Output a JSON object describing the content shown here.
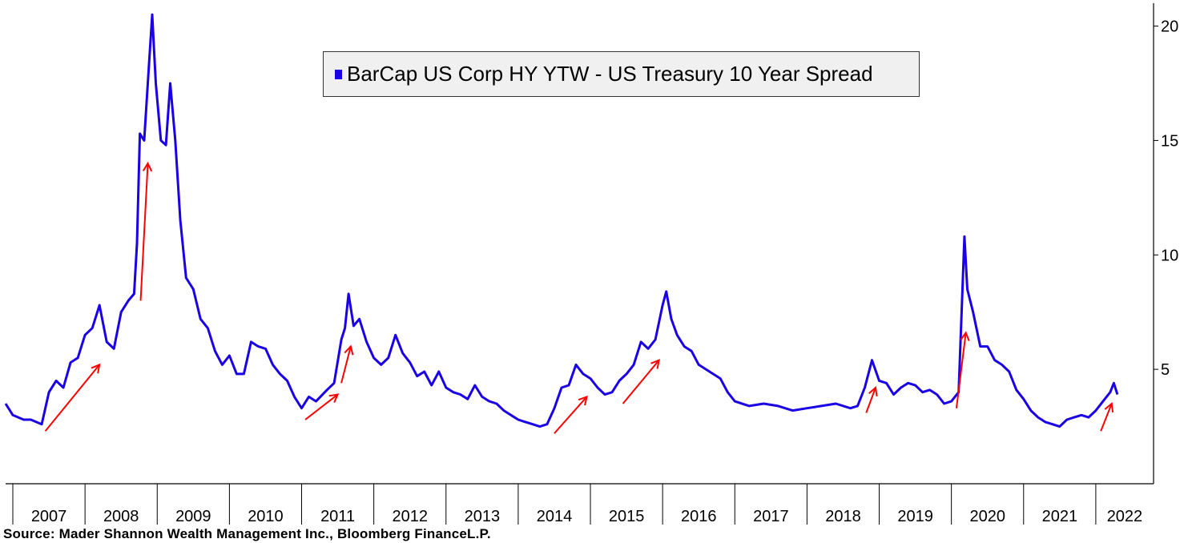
{
  "chart_data": {
    "type": "line",
    "title": "",
    "xlabel": "",
    "ylabel": "",
    "legend": {
      "position": "top-center",
      "label": "BarCap US Corp HY YTW -  US Treasury 10 Year Spread"
    },
    "source": "Source: Mader Shannon Wealth Management Inc., Bloomberg FinanceL.P.",
    "y_axis": {
      "side": "right",
      "ticks": [
        "5",
        "10",
        "15",
        "20"
      ],
      "ylim": [
        0,
        21
      ]
    },
    "x_axis": {
      "categories": [
        "2007",
        "2008",
        "2009",
        "2010",
        "2011",
        "2012",
        "2013",
        "2014",
        "2015",
        "2016",
        "2017",
        "2018",
        "2019",
        "2020",
        "2021",
        "2022"
      ],
      "xlim": [
        2006.9,
        2022.8
      ]
    },
    "grid": false,
    "series": [
      {
        "name": "BarCap US Corp HY YTW -  US Treasury 10 Year Spread",
        "color": "#1a00e6",
        "points": [
          [
            2006.9,
            3.5
          ],
          [
            2007.0,
            3.0
          ],
          [
            2007.15,
            2.8
          ],
          [
            2007.25,
            2.8
          ],
          [
            2007.4,
            2.6
          ],
          [
            2007.5,
            4.0
          ],
          [
            2007.6,
            4.5
          ],
          [
            2007.7,
            4.2
          ],
          [
            2007.8,
            5.3
          ],
          [
            2007.9,
            5.5
          ],
          [
            2008.0,
            6.5
          ],
          [
            2008.1,
            6.8
          ],
          [
            2008.2,
            7.8
          ],
          [
            2008.3,
            6.2
          ],
          [
            2008.4,
            5.9
          ],
          [
            2008.5,
            7.5
          ],
          [
            2008.6,
            8.0
          ],
          [
            2008.68,
            8.3
          ],
          [
            2008.72,
            10.5
          ],
          [
            2008.76,
            15.3
          ],
          [
            2008.82,
            15.0
          ],
          [
            2008.88,
            18.0
          ],
          [
            2008.93,
            20.5
          ],
          [
            2008.98,
            17.5
          ],
          [
            2009.05,
            15.0
          ],
          [
            2009.12,
            14.8
          ],
          [
            2009.18,
            17.5
          ],
          [
            2009.25,
            15.0
          ],
          [
            2009.32,
            11.5
          ],
          [
            2009.4,
            9.0
          ],
          [
            2009.5,
            8.5
          ],
          [
            2009.6,
            7.2
          ],
          [
            2009.7,
            6.8
          ],
          [
            2009.8,
            5.8
          ],
          [
            2009.9,
            5.2
          ],
          [
            2010.0,
            5.6
          ],
          [
            2010.1,
            4.8
          ],
          [
            2010.2,
            4.8
          ],
          [
            2010.3,
            6.2
          ],
          [
            2010.4,
            6.0
          ],
          [
            2010.5,
            5.9
          ],
          [
            2010.6,
            5.2
          ],
          [
            2010.7,
            4.8
          ],
          [
            2010.8,
            4.5
          ],
          [
            2010.9,
            3.8
          ],
          [
            2011.0,
            3.3
          ],
          [
            2011.1,
            3.8
          ],
          [
            2011.2,
            3.6
          ],
          [
            2011.35,
            4.1
          ],
          [
            2011.45,
            4.4
          ],
          [
            2011.55,
            6.3
          ],
          [
            2011.6,
            6.8
          ],
          [
            2011.65,
            8.3
          ],
          [
            2011.72,
            6.9
          ],
          [
            2011.8,
            7.2
          ],
          [
            2011.9,
            6.2
          ],
          [
            2012.0,
            5.5
          ],
          [
            2012.1,
            5.2
          ],
          [
            2012.2,
            5.5
          ],
          [
            2012.3,
            6.5
          ],
          [
            2012.4,
            5.7
          ],
          [
            2012.5,
            5.3
          ],
          [
            2012.6,
            4.7
          ],
          [
            2012.7,
            4.9
          ],
          [
            2012.8,
            4.3
          ],
          [
            2012.9,
            4.9
          ],
          [
            2013.0,
            4.2
          ],
          [
            2013.1,
            4.0
          ],
          [
            2013.2,
            3.9
          ],
          [
            2013.3,
            3.7
          ],
          [
            2013.4,
            4.3
          ],
          [
            2013.5,
            3.8
          ],
          [
            2013.6,
            3.6
          ],
          [
            2013.7,
            3.5
          ],
          [
            2013.8,
            3.2
          ],
          [
            2013.9,
            3.0
          ],
          [
            2014.0,
            2.8
          ],
          [
            2014.1,
            2.7
          ],
          [
            2014.2,
            2.6
          ],
          [
            2014.3,
            2.5
          ],
          [
            2014.4,
            2.6
          ],
          [
            2014.5,
            3.3
          ],
          [
            2014.6,
            4.2
          ],
          [
            2014.7,
            4.3
          ],
          [
            2014.8,
            5.2
          ],
          [
            2014.9,
            4.8
          ],
          [
            2015.0,
            4.6
          ],
          [
            2015.1,
            4.2
          ],
          [
            2015.2,
            3.9
          ],
          [
            2015.3,
            4.0
          ],
          [
            2015.4,
            4.5
          ],
          [
            2015.5,
            4.8
          ],
          [
            2015.6,
            5.2
          ],
          [
            2015.7,
            6.2
          ],
          [
            2015.8,
            5.9
          ],
          [
            2015.9,
            6.3
          ],
          [
            2016.0,
            7.8
          ],
          [
            2016.05,
            8.4
          ],
          [
            2016.12,
            7.2
          ],
          [
            2016.2,
            6.5
          ],
          [
            2016.3,
            6.0
          ],
          [
            2016.4,
            5.8
          ],
          [
            2016.5,
            5.2
          ],
          [
            2016.6,
            5.0
          ],
          [
            2016.7,
            4.8
          ],
          [
            2016.8,
            4.6
          ],
          [
            2016.9,
            4.0
          ],
          [
            2017.0,
            3.6
          ],
          [
            2017.2,
            3.4
          ],
          [
            2017.4,
            3.5
          ],
          [
            2017.6,
            3.4
          ],
          [
            2017.8,
            3.2
          ],
          [
            2018.0,
            3.3
          ],
          [
            2018.2,
            3.4
          ],
          [
            2018.4,
            3.5
          ],
          [
            2018.6,
            3.3
          ],
          [
            2018.7,
            3.4
          ],
          [
            2018.8,
            4.2
          ],
          [
            2018.9,
            5.4
          ],
          [
            2019.0,
            4.5
          ],
          [
            2019.1,
            4.4
          ],
          [
            2019.2,
            3.9
          ],
          [
            2019.3,
            4.2
          ],
          [
            2019.4,
            4.4
          ],
          [
            2019.5,
            4.3
          ],
          [
            2019.6,
            4.0
          ],
          [
            2019.7,
            4.1
          ],
          [
            2019.8,
            3.9
          ],
          [
            2019.9,
            3.5
          ],
          [
            2020.0,
            3.6
          ],
          [
            2020.1,
            4.0
          ],
          [
            2020.18,
            10.8
          ],
          [
            2020.22,
            8.5
          ],
          [
            2020.3,
            7.5
          ],
          [
            2020.4,
            6.0
          ],
          [
            2020.5,
            6.0
          ],
          [
            2020.6,
            5.4
          ],
          [
            2020.7,
            5.2
          ],
          [
            2020.8,
            4.9
          ],
          [
            2020.9,
            4.1
          ],
          [
            2021.0,
            3.7
          ],
          [
            2021.1,
            3.2
          ],
          [
            2021.2,
            2.9
          ],
          [
            2021.3,
            2.7
          ],
          [
            2021.4,
            2.6
          ],
          [
            2021.5,
            2.5
          ],
          [
            2021.6,
            2.8
          ],
          [
            2021.7,
            2.9
          ],
          [
            2021.8,
            3.0
          ],
          [
            2021.9,
            2.9
          ],
          [
            2022.0,
            3.2
          ],
          [
            2022.1,
            3.6
          ],
          [
            2022.2,
            4.0
          ],
          [
            2022.25,
            4.4
          ],
          [
            2022.3,
            3.9
          ]
        ]
      }
    ],
    "annotations": [
      {
        "type": "arrow",
        "color": "#ff0000",
        "from": [
          2007.45,
          2.3
        ],
        "to": [
          2008.2,
          5.2
        ]
      },
      {
        "type": "arrow",
        "color": "#ff0000",
        "from": [
          2008.77,
          8.0
        ],
        "to": [
          2008.87,
          14.0
        ]
      },
      {
        "type": "arrow",
        "color": "#ff0000",
        "from": [
          2011.05,
          2.8
        ],
        "to": [
          2011.5,
          3.9
        ]
      },
      {
        "type": "arrow",
        "color": "#ff0000",
        "from": [
          2011.55,
          4.4
        ],
        "to": [
          2011.68,
          6.0
        ]
      },
      {
        "type": "arrow",
        "color": "#ff0000",
        "from": [
          2014.5,
          2.2
        ],
        "to": [
          2014.95,
          3.8
        ]
      },
      {
        "type": "arrow",
        "color": "#ff0000",
        "from": [
          2015.45,
          3.5
        ],
        "to": [
          2015.95,
          5.4
        ]
      },
      {
        "type": "arrow",
        "color": "#ff0000",
        "from": [
          2018.82,
          3.1
        ],
        "to": [
          2018.95,
          4.2
        ]
      },
      {
        "type": "arrow",
        "color": "#ff0000",
        "from": [
          2020.07,
          3.3
        ],
        "to": [
          2020.2,
          6.6
        ]
      },
      {
        "type": "arrow",
        "color": "#ff0000",
        "from": [
          2022.07,
          2.3
        ],
        "to": [
          2022.22,
          3.5
        ]
      }
    ]
  }
}
